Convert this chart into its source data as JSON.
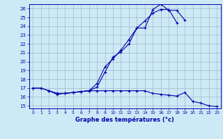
{
  "xlabel": "Graphe des températures (°c)",
  "xlim": [
    -0.5,
    23.5
  ],
  "ylim": [
    14.7,
    26.5
  ],
  "yticks": [
    15,
    16,
    17,
    18,
    19,
    20,
    21,
    22,
    23,
    24,
    25,
    26
  ],
  "xticks": [
    0,
    1,
    2,
    3,
    4,
    5,
    6,
    7,
    8,
    9,
    10,
    11,
    12,
    13,
    14,
    15,
    16,
    17,
    18,
    19,
    20,
    21,
    22,
    23
  ],
  "background_color": "#cde9f6",
  "grid_color": "#a0b8c8",
  "line_color": "#0000aa",
  "series": [
    {
      "x": [
        0,
        1,
        2,
        3,
        4,
        5,
        6,
        7,
        8,
        9,
        10,
        11,
        12,
        13,
        14,
        15,
        16,
        17,
        18,
        19
      ],
      "y": [
        17.0,
        17.0,
        16.7,
        16.3,
        16.4,
        16.5,
        16.6,
        16.7,
        17.1,
        18.8,
        20.5,
        21.1,
        22.0,
        23.8,
        23.8,
        25.9,
        26.5,
        25.8,
        25.8,
        24.7
      ]
    },
    {
      "x": [
        0,
        1,
        2,
        3,
        4,
        5,
        6,
        7,
        8,
        9,
        10,
        11,
        12,
        13,
        14,
        15,
        16,
        17,
        18,
        19,
        20,
        21,
        22,
        23
      ],
      "y": [
        17.0,
        17.0,
        16.7,
        16.4,
        16.4,
        16.5,
        16.6,
        16.7,
        16.7,
        16.7,
        16.7,
        16.7,
        16.7,
        16.7,
        16.7,
        16.4,
        16.3,
        16.2,
        16.1,
        16.5,
        15.5,
        15.3,
        15.0,
        14.9
      ]
    },
    {
      "x": [
        2,
        3,
        4,
        5,
        6,
        7,
        8,
        9,
        10,
        11,
        12,
        13,
        14,
        15,
        16,
        17,
        18
      ],
      "y": [
        16.7,
        16.4,
        16.4,
        16.5,
        16.6,
        16.7,
        17.5,
        19.4,
        20.3,
        21.3,
        22.5,
        23.8,
        24.6,
        25.5,
        25.9,
        25.9,
        24.4
      ]
    }
  ]
}
